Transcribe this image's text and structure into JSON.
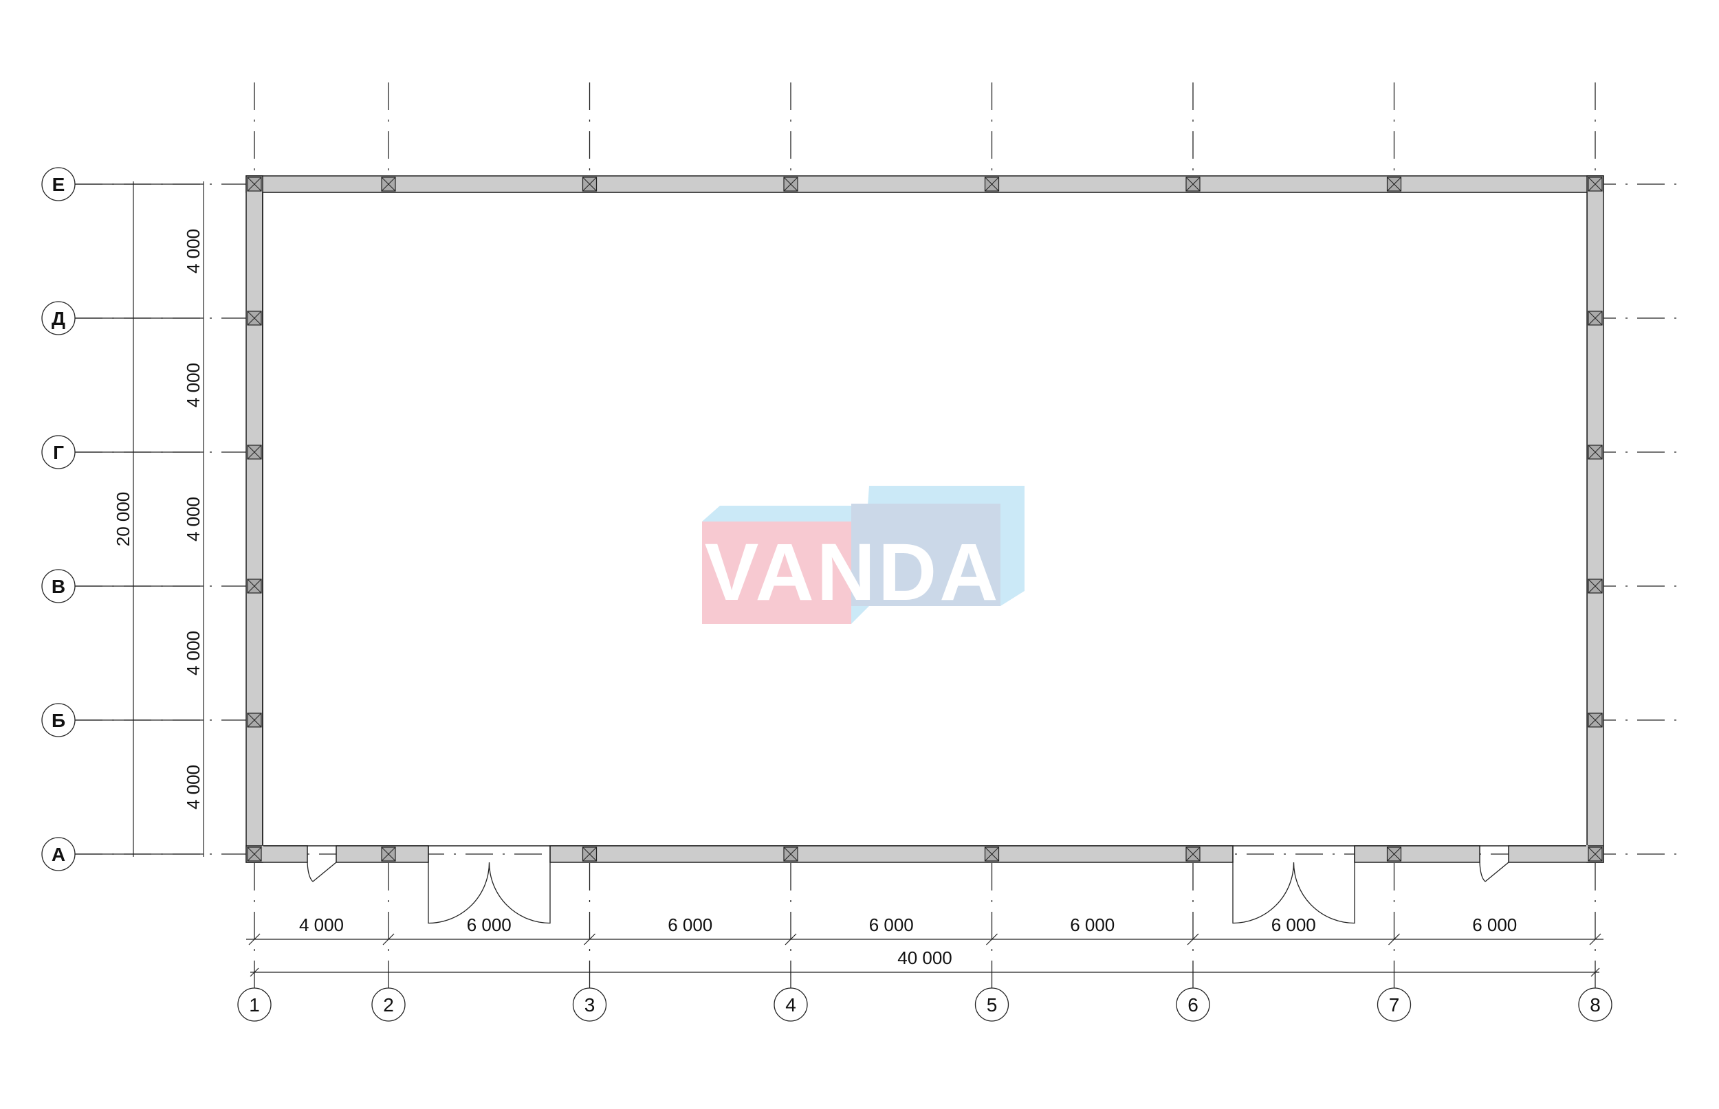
{
  "plan": {
    "columns": [
      {
        "label": "1"
      },
      {
        "label": "2"
      },
      {
        "label": "3"
      },
      {
        "label": "4"
      },
      {
        "label": "5"
      },
      {
        "label": "6"
      },
      {
        "label": "7"
      },
      {
        "label": "8"
      }
    ],
    "column_spacings_mm": [
      4000,
      6000,
      6000,
      6000,
      6000,
      6000,
      6000
    ],
    "column_spacing_labels": [
      "4 000",
      "6 000",
      "6 000",
      "6 000",
      "6 000",
      "6 000",
      "6 000"
    ],
    "total_length_label": "40 000",
    "rows_top_to_bottom": [
      {
        "label": "Е"
      },
      {
        "label": "Д"
      },
      {
        "label": "Г"
      },
      {
        "label": "В"
      },
      {
        "label": "Б"
      },
      {
        "label": "А"
      }
    ],
    "row_spacings_mm": [
      4000,
      4000,
      4000,
      4000,
      4000
    ],
    "row_spacing_labels": [
      "4 000",
      "4 000",
      "4 000",
      "4 000",
      "4 000"
    ],
    "total_width_label": "20 000",
    "doors": [
      {
        "type": "single",
        "wall": "А",
        "between_columns": [
          "1",
          "2"
        ]
      },
      {
        "type": "double",
        "wall": "А",
        "between_columns": [
          "2",
          "3"
        ]
      },
      {
        "type": "double",
        "wall": "А",
        "between_columns": [
          "6",
          "7"
        ]
      },
      {
        "type": "single",
        "wall": "А",
        "between_columns": [
          "7",
          "8"
        ]
      }
    ]
  },
  "watermark": {
    "text": "VANDA",
    "colors": {
      "pink": "#f7c9d1",
      "light_blue": "#cbe9f7",
      "grey_blue": "#cbd8e8"
    }
  },
  "colors": {
    "wall_fill": "#cccccc",
    "line": "#222222"
  }
}
